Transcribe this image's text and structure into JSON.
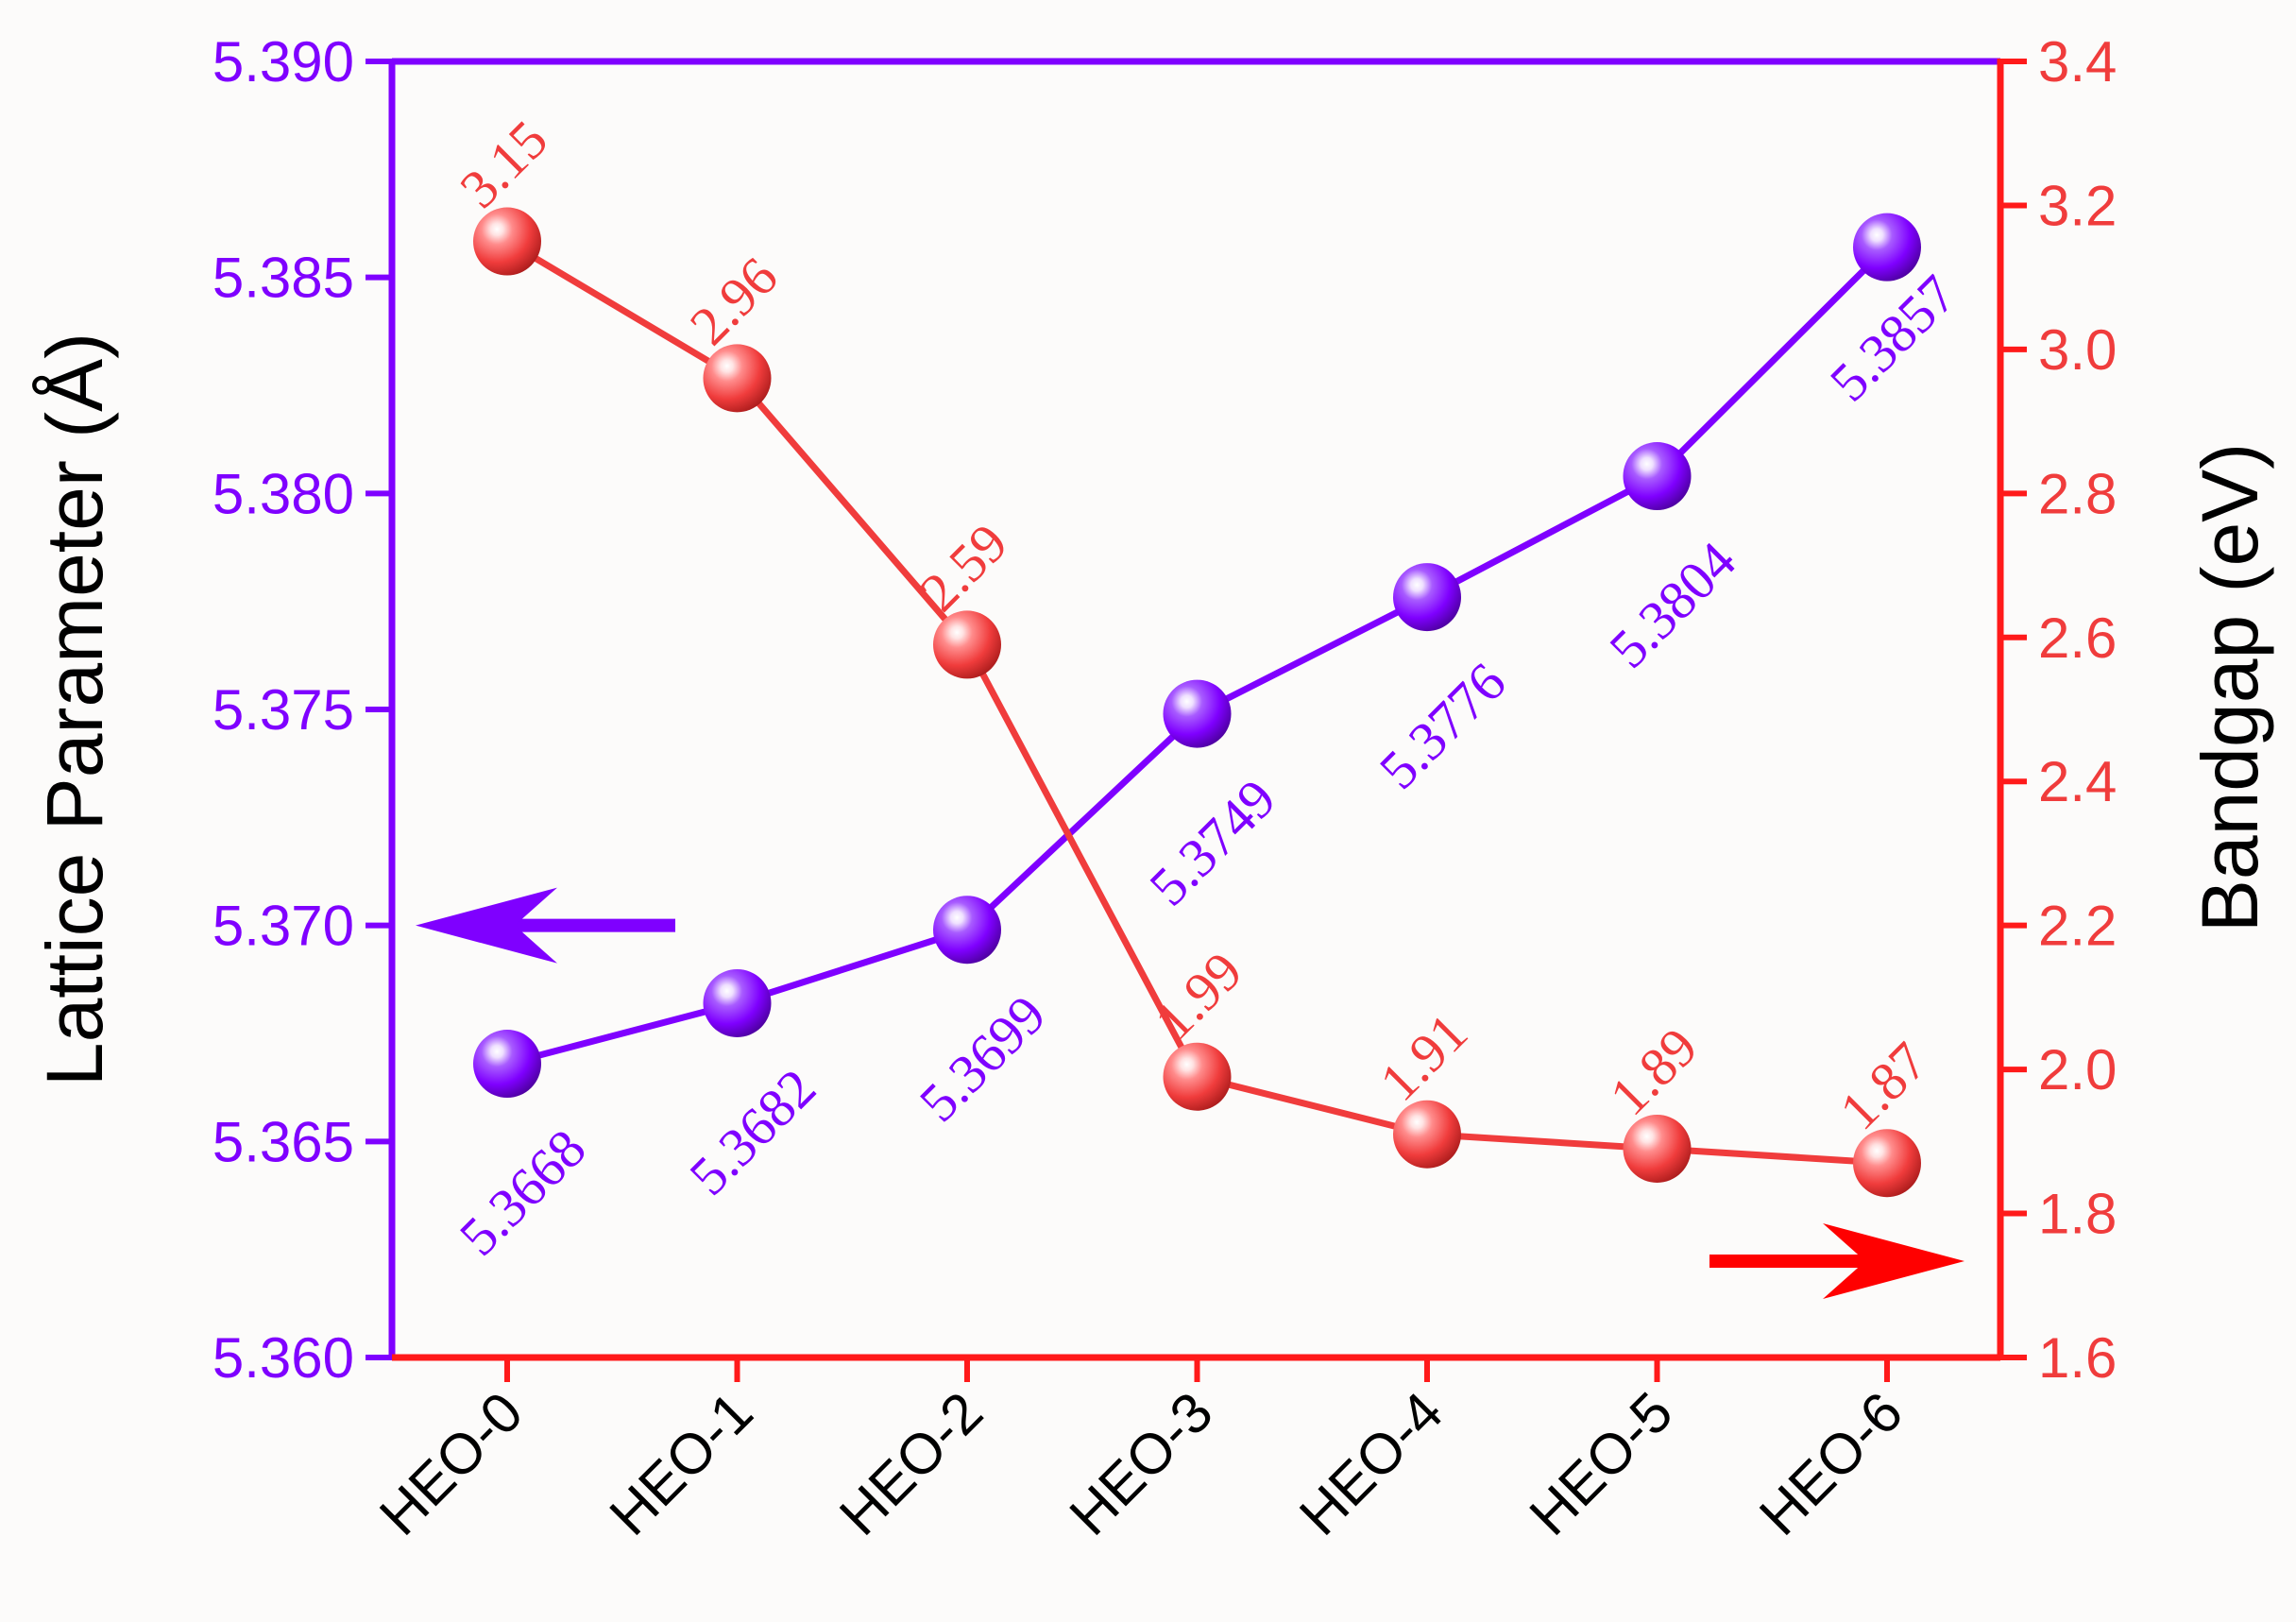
{
  "chart_data": {
    "type": "line",
    "categories": [
      "HEO-0",
      "HEO-1",
      "HEO-2",
      "HEO-3",
      "HEO-4",
      "HEO-5",
      "HEO-6"
    ],
    "series": [
      {
        "axis": "left",
        "color": "#7f00ff",
        "values": [
          5.3668,
          5.3682,
          5.3699,
          5.3749,
          5.3776,
          5.3804,
          5.3857
        ],
        "labels": [
          "5.3668",
          "5.3682",
          "5.3699",
          "5.3749",
          "5.3776",
          "5.3804",
          "5.3857"
        ]
      },
      {
        "axis": "right",
        "color": "#f03c3c",
        "values": [
          3.15,
          2.96,
          2.59,
          1.99,
          1.91,
          1.89,
          1.87
        ],
        "labels": [
          "3.15",
          "2.96",
          "2.59",
          "1.99",
          "1.91",
          "1.89",
          "1.87"
        ]
      }
    ],
    "left_axis": {
      "label": "Lattice Parameter (Å)",
      "ylim": [
        5.36,
        5.39
      ],
      "ticks": [
        "5.360",
        "5.365",
        "5.370",
        "5.375",
        "5.380",
        "5.385",
        "5.390"
      ],
      "color": "#7f00ff"
    },
    "right_axis": {
      "label": "Bandgap (eV)",
      "ylim": [
        1.6,
        3.4
      ],
      "ticks": [
        "1.6",
        "1.8",
        "2.0",
        "2.2",
        "2.4",
        "2.6",
        "2.8",
        "3.0",
        "3.2",
        "3.4"
      ],
      "color": "#f03c3c",
      "label_color": "#000000"
    },
    "arrows": [
      {
        "series": "left",
        "direction": "left",
        "color": "#7f00ff"
      },
      {
        "series": "right",
        "direction": "right",
        "color": "#ff0000"
      }
    ],
    "grid": false
  }
}
